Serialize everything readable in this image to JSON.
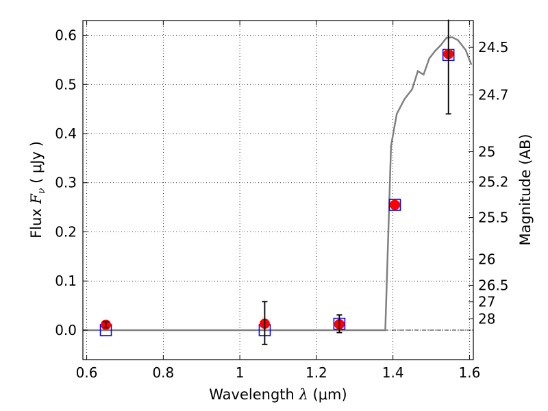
{
  "chart_data": {
    "type": "scatter",
    "title": "",
    "xlabel": "Wavelength  λ (μm)",
    "ylabel": "Flux  F_ν  ( μJy )",
    "ylabel_parts": {
      "pre": "Flux ",
      "symbol": "F",
      "sub": "ν",
      "unit": "  ( μJy )"
    },
    "xlabel_parts": {
      "pre": "Wavelength  ",
      "symbol": "λ",
      "unit": " (μm)"
    },
    "y2label": "Magnitude (AB)",
    "xlim": [
      0.59,
      1.61
    ],
    "ylim": [
      -0.06,
      0.63
    ],
    "grid": true,
    "x_ticks": [
      {
        "value": 0.6,
        "label": "0.6"
      },
      {
        "value": 0.8,
        "label": "0.8"
      },
      {
        "value": 1.0,
        "label": "1"
      },
      {
        "value": 1.2,
        "label": "1.2"
      },
      {
        "value": 1.4,
        "label": "1.4"
      },
      {
        "value": 1.6,
        "label": "1.6"
      }
    ],
    "y_ticks": [
      {
        "value": 0.0,
        "label": "0.0"
      },
      {
        "value": 0.1,
        "label": "0.1"
      },
      {
        "value": 0.2,
        "label": "0.2"
      },
      {
        "value": 0.3,
        "label": "0.3"
      },
      {
        "value": 0.4,
        "label": "0.4"
      },
      {
        "value": 0.5,
        "label": "0.5"
      },
      {
        "value": 0.6,
        "label": "0.6"
      }
    ],
    "y2_ticks": [
      {
        "mag": 24.5,
        "label": "24.5"
      },
      {
        "mag": 24.7,
        "label": "24.7"
      },
      {
        "mag": 25.0,
        "label": "25"
      },
      {
        "mag": 25.2,
        "label": "25.2"
      },
      {
        "mag": 25.5,
        "label": "25.5"
      },
      {
        "mag": 26.0,
        "label": "26"
      },
      {
        "mag": 26.5,
        "label": "26.5"
      },
      {
        "mag": 27.0,
        "label": "27"
      },
      {
        "mag": 28.0,
        "label": "28"
      }
    ],
    "series": [
      {
        "kind": "model_line",
        "color": "#808080",
        "x": [
          0.59,
          1.38,
          1.395,
          1.41,
          1.43,
          1.45,
          1.465,
          1.48,
          1.495,
          1.51,
          1.525,
          1.54,
          1.555,
          1.57,
          1.59,
          1.605
        ],
        "y": [
          0.0,
          0.0,
          0.375,
          0.44,
          0.47,
          0.49,
          0.527,
          0.52,
          0.553,
          0.568,
          0.58,
          0.595,
          0.596,
          0.59,
          0.57,
          0.54
        ]
      },
      {
        "kind": "model_photometry",
        "marker": "open-square",
        "color": "#0000ff",
        "points": [
          {
            "x": 0.65,
            "y": 0.0
          },
          {
            "x": 1.065,
            "y": 0.0
          },
          {
            "x": 1.26,
            "y": 0.013
          },
          {
            "x": 1.405,
            "y": 0.255
          },
          {
            "x": 1.545,
            "y": 0.56
          }
        ]
      },
      {
        "kind": "observed",
        "marker": "filled-circle",
        "color": "#ff0000",
        "error_color": "#000000",
        "points": [
          {
            "x": 0.65,
            "y": 0.011,
            "err_lo": 0.006,
            "err_hi": 0.006
          },
          {
            "x": 1.065,
            "y": 0.013,
            "err_lo": 0.042,
            "err_hi": 0.045
          },
          {
            "x": 1.26,
            "y": 0.012,
            "err_lo": 0.017,
            "err_hi": 0.019
          },
          {
            "x": 1.405,
            "y": 0.255,
            "err_lo": 0.0,
            "err_hi": 0.0
          },
          {
            "x": 1.545,
            "y": 0.562,
            "err_lo": 0.122,
            "err_hi": 0.07
          }
        ]
      }
    ]
  }
}
